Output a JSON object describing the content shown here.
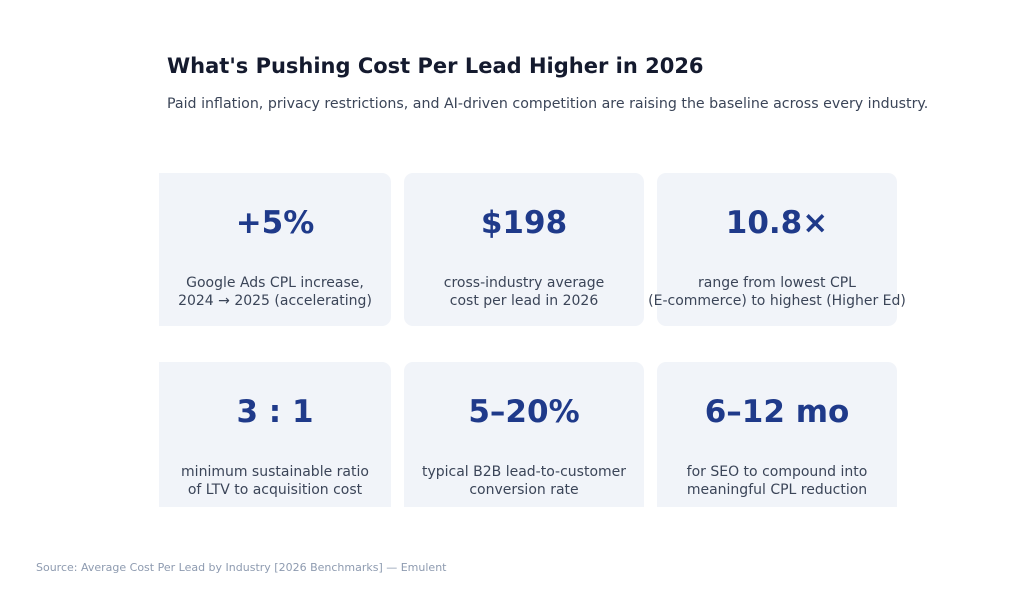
{
  "header": {
    "title": "What's Pushing Cost Per Lead Higher in 2026",
    "subtitle": "Paid inflation, privacy restrictions, and AI-driven competition are raising the baseline across every industry."
  },
  "cards": [
    {
      "value": "+5%",
      "desc_line1": "Google Ads CPL increase,",
      "desc_line2": "2024 → 2025 (accelerating)"
    },
    {
      "value": "$198",
      "desc_line1": "cross-industry average",
      "desc_line2": "cost per lead in 2026"
    },
    {
      "value": "10.8×",
      "desc_line1": "range from lowest CPL",
      "desc_line2": "(E-commerce) to highest (Higher Ed)"
    },
    {
      "value": "3 : 1",
      "desc_line1": "minimum sustainable ratio",
      "desc_line2": "of LTV to acquisition cost"
    },
    {
      "value": "5–20%",
      "desc_line1": "typical B2B lead-to-customer",
      "desc_line2": "conversion rate"
    },
    {
      "value": "6–12 mo",
      "desc_line1": "for SEO to compound into",
      "desc_line2": "meaningful CPL reduction"
    }
  ],
  "footer": {
    "source": "Source: Average Cost Per Lead by Industry [2026 Benchmarks] — Emulent"
  },
  "colors": {
    "card_bg": "#f1f4f9",
    "stat": "#1f3a8a",
    "title": "#141a2e",
    "text": "#3b4558",
    "source": "#8e9bb0"
  }
}
